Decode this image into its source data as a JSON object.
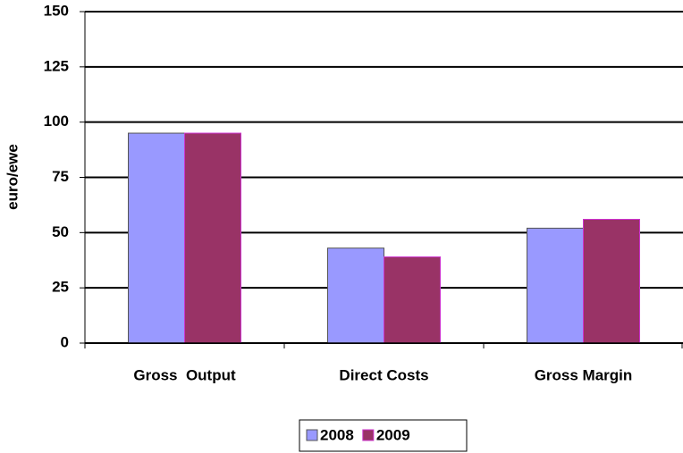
{
  "chart_data": {
    "type": "bar",
    "y_label": "euro/ewe",
    "categories": [
      "Gross  Output",
      "Direct Costs",
      "Gross Margin"
    ],
    "series": [
      {
        "name": "2008",
        "color": "#9999ff",
        "values": [
          95,
          43,
          52
        ]
      },
      {
        "name": "2009",
        "color": "#993366",
        "values": [
          95,
          39,
          56
        ]
      }
    ],
    "ylim": [
      0,
      150
    ],
    "yticks": [
      0,
      25,
      50,
      75,
      100,
      125,
      150
    ],
    "grid": true,
    "legend": "bottom"
  }
}
